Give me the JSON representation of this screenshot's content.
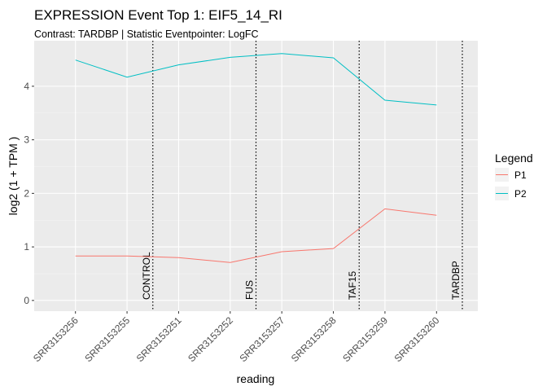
{
  "chart_data": {
    "type": "line",
    "title": "EXPRESSION Event Top 1: EIF5_14_RI",
    "subtitle": "Contrast: TARDBP | Statistic Eventpointer: LogFC",
    "xlabel": "reading",
    "ylabel": "log2 (1 + TPM )",
    "categories": [
      "SRR3153256",
      "SRR3153255",
      "SRR3153251",
      "SRR3153252",
      "SRR3153257",
      "SRR3153258",
      "SRR3153259",
      "SRR3153260"
    ],
    "ylim": [
      -0.2,
      4.85
    ],
    "yticks": [
      0,
      1,
      2,
      3,
      4
    ],
    "series": [
      {
        "name": "P1",
        "color": "#F8766D",
        "values": [
          0.83,
          0.83,
          0.8,
          0.71,
          0.91,
          0.97,
          1.71,
          1.59
        ]
      },
      {
        "name": "P2",
        "color": "#00BFC4",
        "values": [
          4.49,
          4.17,
          4.4,
          4.54,
          4.61,
          4.53,
          3.74,
          3.65
        ]
      }
    ],
    "vlines": [
      {
        "label": "CONTROL",
        "x": 2.5
      },
      {
        "label": "FUS",
        "x": 4.5
      },
      {
        "label": "TAF15",
        "x": 6.5
      },
      {
        "label": "TARDBP",
        "x": 8.5
      }
    ],
    "legend": {
      "title": "Legend",
      "position": "right"
    },
    "grid": true
  }
}
